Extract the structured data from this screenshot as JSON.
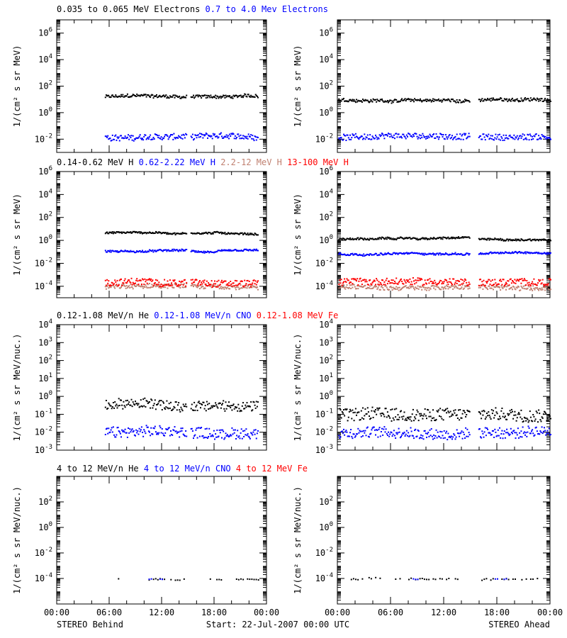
{
  "footer": {
    "left": "STEREO Behind",
    "center": "Start: 22-Jul-2007 00:00 UTC",
    "right": "STEREO Ahead"
  },
  "chart_data": [
    {
      "type": "scatter",
      "row": 1,
      "legend": [
        {
          "text": "0.035 to 0.065 MeV Electrons",
          "color": "#000000"
        },
        {
          "text": "0.7 to 4.0 Mev Electrons",
          "color": "#0000ff"
        }
      ],
      "ylabel": "1/(cm² s sr MeV)",
      "yscale": "log",
      "ylim_exp": [
        -3,
        7
      ],
      "ytick_exps": [
        -2,
        0,
        2,
        4,
        6
      ],
      "xlim": [
        "00:00",
        "24:00"
      ],
      "xtick_labels": [
        "00:00",
        "06:00",
        "12:00",
        "18:00",
        "00:00"
      ],
      "panels": [
        {
          "spacecraft": "STEREO Behind",
          "series": [
            {
              "color": "#000000",
              "level_exp": 1.25,
              "spread": 0.12,
              "coverage_hours": [
                [
                  5.5,
                  14.8
                ],
                [
                  15.3,
                  23.0
                ]
              ]
            },
            {
              "color": "#0000ff",
              "level_exp": -1.8,
              "spread": 0.22,
              "coverage_hours": [
                [
                  5.5,
                  14.8
                ],
                [
                  15.3,
                  23.0
                ]
              ]
            }
          ]
        },
        {
          "spacecraft": "STEREO Ahead",
          "series": [
            {
              "color": "#000000",
              "level_exp": 1.0,
              "spread": 0.12,
              "coverage_hours": [
                [
                  0.1,
                  14.9
                ],
                [
                  15.9,
                  24.0
                ]
              ]
            },
            {
              "color": "#0000ff",
              "level_exp": -1.8,
              "spread": 0.22,
              "coverage_hours": [
                [
                  0.1,
                  14.9
                ],
                [
                  15.9,
                  24.0
                ]
              ]
            }
          ]
        }
      ]
    },
    {
      "type": "scatter",
      "row": 2,
      "legend": [
        {
          "text": "0.14-0.62 MeV H",
          "color": "#000000"
        },
        {
          "text": "0.62-2.22 MeV H",
          "color": "#0000ff"
        },
        {
          "text": "2.2-12 MeV H",
          "color": "#c08070"
        },
        {
          "text": "13-100 MeV H",
          "color": "#ff0000"
        }
      ],
      "ylabel": "1/(cm² s sr MeV)",
      "yscale": "log",
      "ylim_exp": [
        -5,
        6
      ],
      "ytick_exps": [
        -4,
        -2,
        0,
        2,
        4,
        6
      ],
      "xlim": [
        "00:00",
        "24:00"
      ],
      "xtick_labels": [
        "00:00",
        "06:00",
        "12:00",
        "18:00",
        "00:00"
      ],
      "panels": [
        {
          "spacecraft": "STEREO Behind",
          "series": [
            {
              "color": "#000000",
              "level_exp": 0.7,
              "spread": 0.08,
              "coverage_hours": [
                [
                  5.5,
                  14.8
                ],
                [
                  15.3,
                  23.0
                ]
              ]
            },
            {
              "color": "#0000ff",
              "level_exp": -0.9,
              "spread": 0.08,
              "coverage_hours": [
                [
                  5.5,
                  14.8
                ],
                [
                  15.3,
                  23.0
                ]
              ]
            },
            {
              "color": "#c08070",
              "level_exp": -4.0,
              "spread": 0.2,
              "coverage_hours": [
                [
                  5.5,
                  14.8
                ],
                [
                  15.3,
                  23.0
                ]
              ]
            },
            {
              "color": "#ff0000",
              "level_exp": -3.6,
              "spread": 0.3,
              "coverage_hours": [
                [
                  5.5,
                  14.8
                ],
                [
                  15.3,
                  23.0
                ]
              ]
            }
          ]
        },
        {
          "spacecraft": "STEREO Ahead",
          "series": [
            {
              "color": "#000000",
              "level_exp": 0.2,
              "spread": 0.08,
              "coverage_hours": [
                [
                  0.1,
                  14.9
                ],
                [
                  15.9,
                  24.0
                ]
              ]
            },
            {
              "color": "#0000ff",
              "level_exp": -1.1,
              "spread": 0.08,
              "coverage_hours": [
                [
                  0.1,
                  14.9
                ],
                [
                  15.9,
                  24.0
                ]
              ]
            },
            {
              "color": "#c08070",
              "level_exp": -4.0,
              "spread": 0.2,
              "coverage_hours": [
                [
                  0.1,
                  14.9
                ],
                [
                  15.9,
                  24.0
                ]
              ]
            },
            {
              "color": "#ff0000",
              "level_exp": -3.6,
              "spread": 0.3,
              "coverage_hours": [
                [
                  0.1,
                  14.9
                ],
                [
                  15.9,
                  24.0
                ]
              ]
            }
          ]
        }
      ]
    },
    {
      "type": "scatter",
      "row": 3,
      "legend": [
        {
          "text": "0.12-1.08 MeV/n He",
          "color": "#000000"
        },
        {
          "text": "0.12-1.08 MeV/n CNO",
          "color": "#0000ff"
        },
        {
          "text": "0.12-1.08 MeV Fe",
          "color": "#ff0000"
        }
      ],
      "ylabel": "1/(cm² s sr MeV/nuc.)",
      "yscale": "log",
      "ylim_exp": [
        -3,
        4
      ],
      "ytick_exps": [
        -3,
        -2,
        -1,
        0,
        1,
        2,
        3,
        4
      ],
      "xlim": [
        "00:00",
        "24:00"
      ],
      "xtick_labels": [
        "00:00",
        "06:00",
        "12:00",
        "18:00",
        "00:00"
      ],
      "panels": [
        {
          "spacecraft": "STEREO Behind",
          "series": [
            {
              "color": "#000000",
              "level_exp": -0.45,
              "spread": 0.28,
              "coverage_hours": [
                [
                  5.5,
                  14.8
                ],
                [
                  15.3,
                  23.0
                ]
              ]
            },
            {
              "color": "#0000ff",
              "level_exp": -2.0,
              "spread": 0.3,
              "coverage_hours": [
                [
                  5.5,
                  14.8
                ],
                [
                  15.3,
                  23.0
                ]
              ]
            }
          ]
        },
        {
          "spacecraft": "STEREO Ahead",
          "series": [
            {
              "color": "#000000",
              "level_exp": -0.95,
              "spread": 0.35,
              "coverage_hours": [
                [
                  0.1,
                  14.9
                ],
                [
                  15.9,
                  24.0
                ]
              ]
            },
            {
              "color": "#0000ff",
              "level_exp": -2.0,
              "spread": 0.3,
              "coverage_hours": [
                [
                  0.1,
                  14.9
                ],
                [
                  15.9,
                  24.0
                ]
              ]
            }
          ]
        }
      ]
    },
    {
      "type": "scatter",
      "row": 4,
      "legend": [
        {
          "text": "4 to 12 MeV/n He",
          "color": "#000000"
        },
        {
          "text": "4 to 12 MeV/n CNO",
          "color": "#0000ff"
        },
        {
          "text": "4 to 12 MeV Fe",
          "color": "#ff0000"
        }
      ],
      "ylabel": "1/(cm² s sr MeV/nuc.)",
      "yscale": "log",
      "ylim_exp": [
        -6,
        4
      ],
      "ytick_exps": [
        -4,
        -2,
        0,
        2
      ],
      "xlim": [
        "00:00",
        "24:00"
      ],
      "xtick_labels": [
        "00:00",
        "06:00",
        "12:00",
        "18:00",
        "00:00"
      ],
      "panels": [
        {
          "spacecraft": "STEREO Behind",
          "series": [
            {
              "color": "#000000",
              "level_exp": -4.0,
              "spread": 0.05,
              "coverage_hours": [
                [
                  7.0,
                  8.0
                ],
                [
                  10.5,
                  14.5
                ],
                [
                  17.5,
                  23.0
                ]
              ]
            },
            {
              "color": "#0000ff",
              "level_exp": -4.0,
              "spread": 0.05,
              "coverage_hours": [
                [
                  10.5,
                  12.0
                ]
              ]
            }
          ]
        },
        {
          "spacecraft": "STEREO Ahead",
          "series": [
            {
              "color": "#000000",
              "level_exp": -4.0,
              "spread": 0.08,
              "coverage_hours": [
                [
                  1.5,
                  5.0
                ],
                [
                  6.5,
                  13.5
                ],
                [
                  16.0,
                  22.5
                ]
              ]
            },
            {
              "color": "#0000ff",
              "level_exp": -4.0,
              "spread": 0.05,
              "coverage_hours": [
                [
                  8.0,
                  9.0
                ],
                [
                  17.5,
                  19.0
                ]
              ]
            }
          ]
        }
      ]
    }
  ]
}
